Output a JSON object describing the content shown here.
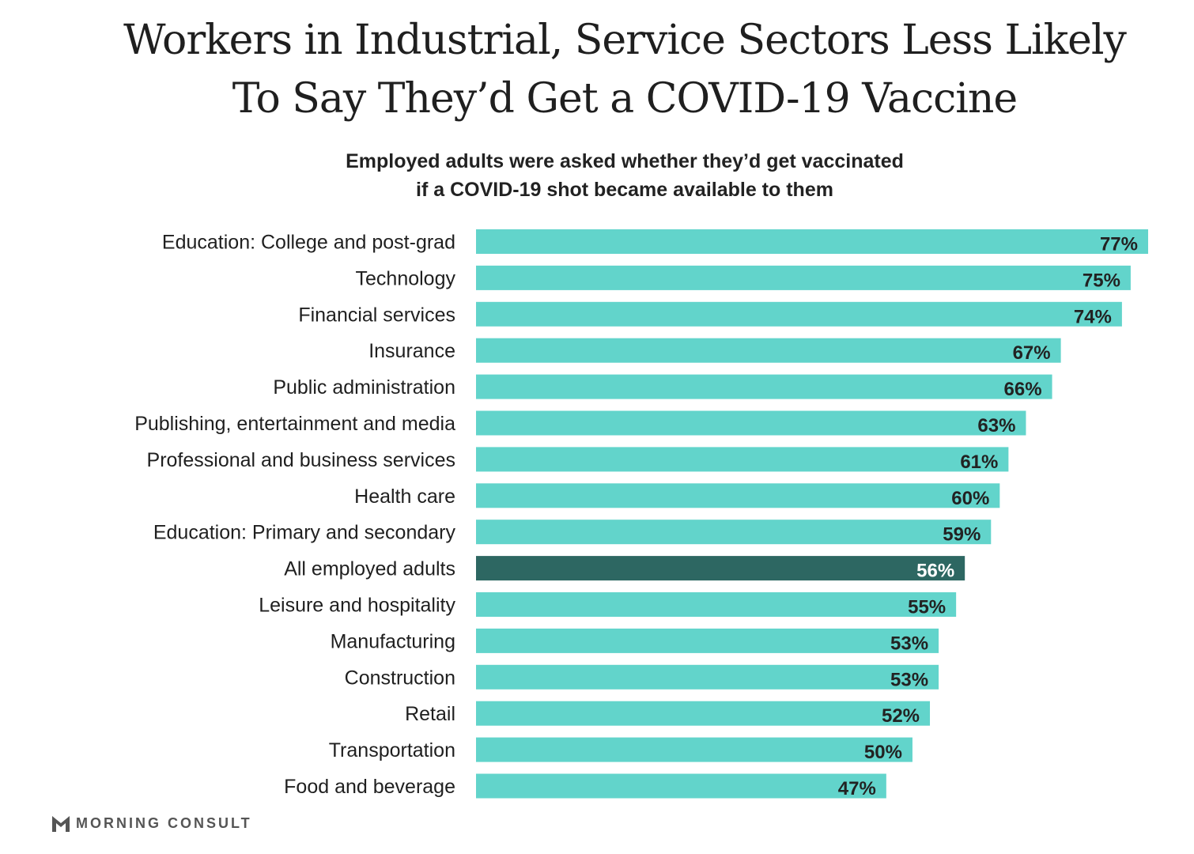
{
  "title": {
    "line1": "Workers in Industrial, Service Sectors Less Likely",
    "line2": "To Say They’d Get a COVID-19 Vaccine"
  },
  "subtitle": {
    "line1": "Employed adults were asked whether they’d get vaccinated",
    "line2": "if a COVID-19 shot became available to them"
  },
  "brand": {
    "name": "MORNING CONSULT",
    "icon": "morning-consult-logo-icon"
  },
  "colors": {
    "bar": "#62d4cb",
    "highlight": "#2d6762",
    "label_dark": "#222222",
    "label_light": "#ffffff",
    "category_text": "#1f1f1f"
  },
  "chart_data": {
    "type": "bar",
    "orientation": "horizontal",
    "title": "Workers in Industrial, Service Sectors Less Likely To Say They’d Get a COVID-19 Vaccine",
    "subtitle": "Employed adults were asked whether they’d get vaccinated if a COVID-19 shot became available to them",
    "categories": [
      "Education: College and post-grad",
      "Technology",
      "Financial services",
      "Insurance",
      "Public administration",
      "Publishing, entertainment and media",
      "Professional and business services",
      "Health care",
      "Education: Primary and secondary",
      "All employed adults",
      "Leisure and hospitality",
      "Manufacturing",
      "Construction",
      "Retail",
      "Transportation",
      "Food and beverage"
    ],
    "values": [
      77,
      75,
      74,
      67,
      66,
      63,
      61,
      60,
      59,
      56,
      55,
      53,
      53,
      52,
      50,
      47
    ],
    "value_labels": [
      "77%",
      "75%",
      "74%",
      "67%",
      "66%",
      "63%",
      "61%",
      "60%",
      "59%",
      "56%",
      "55%",
      "53%",
      "53%",
      "52%",
      "50%",
      "47%"
    ],
    "highlight_category": "All employed adults",
    "xlim": [
      0,
      77
    ],
    "grid": false,
    "legend": "none"
  }
}
